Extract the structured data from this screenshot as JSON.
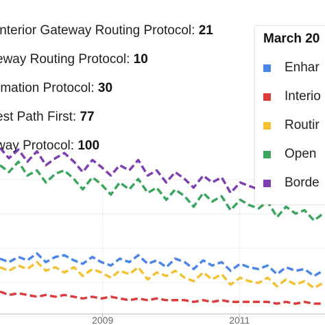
{
  "tooltip": {
    "rows": [
      {
        "name": "Interior Gateway Routing Protocol:",
        "value": "21"
      },
      {
        "name": "eway Routing Protocol:",
        "value": "10"
      },
      {
        "name": "rmation Protocol:",
        "value": "30"
      },
      {
        "name": "est Path First:",
        "value": "77"
      },
      {
        "name": "way Protocol:",
        "value": "100"
      }
    ]
  },
  "legend": {
    "title": "March 20",
    "items": [
      {
        "label": "Enhar",
        "color": "#4a86e8"
      },
      {
        "label": "Interio",
        "color": "#dc3c3c"
      },
      {
        "label": "Routir",
        "color": "#f1c232"
      },
      {
        "label": "Open",
        "color": "#3aa55d"
      },
      {
        "label": "Borde",
        "color": "#7e3fb0"
      }
    ]
  },
  "chart_data": {
    "type": "line",
    "title": "",
    "xlabel": "",
    "ylabel": "",
    "x": [
      2007.5,
      2007.63,
      2007.77,
      2007.9,
      2008.04,
      2008.17,
      2008.31,
      2008.44,
      2008.58,
      2008.71,
      2008.85,
      2008.98,
      2009.12,
      2009.25,
      2009.39,
      2009.52,
      2009.66,
      2009.79,
      2009.93,
      2010.06,
      2010.2,
      2010.33,
      2010.47,
      2010.6,
      2010.74,
      2010.87,
      2011.01,
      2011.14,
      2011.28,
      2011.41,
      2011.55,
      2011.68,
      2011.82,
      2011.95,
      2012.09,
      2012.22
    ],
    "xlim": [
      2007.5,
      2012.25
    ],
    "ylim": [
      0,
      122
    ],
    "x_ticks": [
      {
        "value": 2009,
        "label": "2009"
      },
      {
        "value": 2011,
        "label": "2011"
      }
    ],
    "grid": true,
    "line_style": "dashed",
    "series": [
      {
        "name": "Enhar",
        "color": "#4a86e8",
        "values": [
          32,
          30,
          33,
          31,
          35,
          30,
          33,
          34,
          31,
          29,
          33,
          30,
          28,
          32,
          30,
          34,
          29,
          31,
          27,
          32,
          30,
          26,
          31,
          28,
          30,
          25,
          29,
          27,
          26,
          28,
          23,
          27,
          25,
          26,
          22,
          25
        ]
      },
      {
        "name": "Interio",
        "color": "#dc3c3c",
        "values": [
          13,
          11,
          12,
          11,
          10,
          11,
          10,
          11,
          10,
          9,
          10,
          9,
          10,
          9,
          8,
          9,
          8,
          9,
          8,
          8,
          8,
          7,
          8,
          7,
          8,
          7,
          7,
          7,
          7,
          7,
          6,
          7,
          6,
          7,
          6,
          6
        ]
      },
      {
        "name": "Routir",
        "color": "#f1c232",
        "values": [
          27,
          25,
          28,
          26,
          30,
          25,
          27,
          24,
          27,
          22,
          26,
          24,
          21,
          25,
          23,
          27,
          20,
          24,
          22,
          25,
          21,
          19,
          24,
          20,
          23,
          17,
          21,
          19,
          18,
          21,
          16,
          20,
          17,
          19,
          15,
          18
        ]
      },
      {
        "name": "Open",
        "color": "#3aa55d",
        "values": [
          86,
          82,
          88,
          80,
          83,
          76,
          81,
          83,
          78,
          72,
          79,
          75,
          69,
          76,
          72,
          78,
          70,
          73,
          66,
          72,
          68,
          62,
          70,
          65,
          68,
          60,
          66,
          63,
          61,
          65,
          56,
          62,
          58,
          60,
          54,
          58
        ]
      },
      {
        "name": "Borde",
        "color": "#7e3fb0",
        "values": [
          96,
          90,
          95,
          88,
          94,
          86,
          90,
          93,
          88,
          82,
          89,
          85,
          80,
          86,
          83,
          89,
          80,
          83,
          76,
          82,
          78,
          73,
          80,
          76,
          79,
          70,
          76,
          74,
          72,
          75,
          67,
          72,
          69,
          71,
          65,
          68
        ]
      }
    ]
  }
}
